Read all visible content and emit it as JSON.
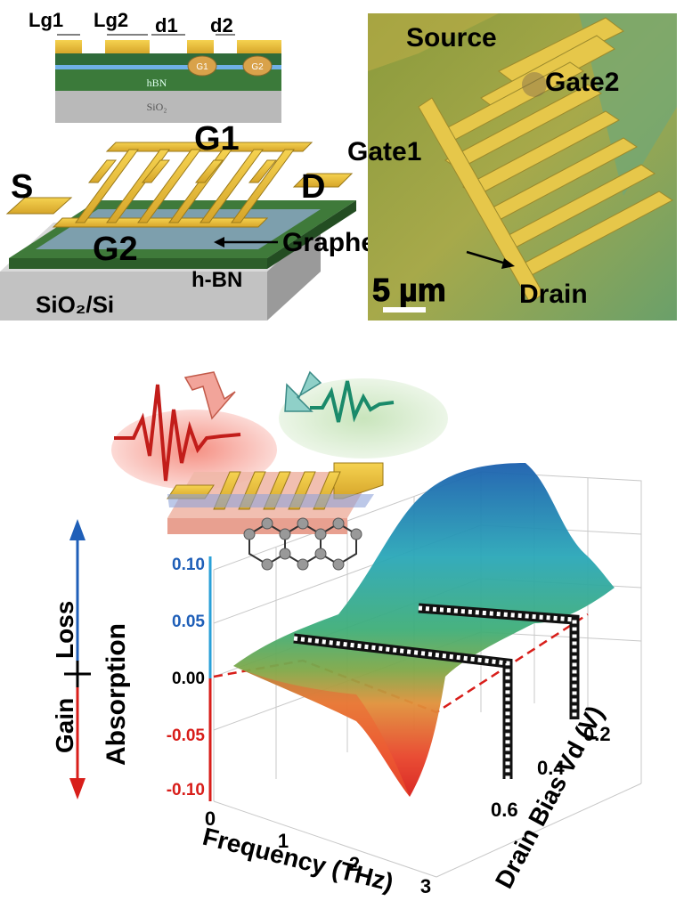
{
  "cross_section": {
    "lg1": "Lg1",
    "lg2": "Lg2",
    "d1": "d1",
    "d2": "d2",
    "g1": "G1",
    "g2": "G2",
    "hbn": "hBN",
    "sio2": "SiO₂"
  },
  "device_3d": {
    "s": "S",
    "d": "D",
    "g1": "G1",
    "g2": "G2",
    "graphene": "Graphene",
    "hbn": "h-BN",
    "substrate": "SiO₂/Si"
  },
  "micrograph": {
    "source": "Source",
    "gate2": "Gate2",
    "gate1": "Gate1",
    "drain": "Drain",
    "scale": "5 µm"
  },
  "chart_data": {
    "type": "surface",
    "title": "",
    "xlabel": "Frequency (THz)",
    "ylabel": "Absorption",
    "zlabel": "Drain Bias Vd (V)",
    "x_ticks": [
      "0",
      "1",
      "2",
      "3"
    ],
    "y_ticks": [
      "0.10",
      "0.05",
      "0.00",
      "-0.05",
      "-0.10"
    ],
    "z_ticks": [
      "0.2",
      "0.4",
      "0.6"
    ],
    "xlim": [
      0,
      3
    ],
    "ylim": [
      -0.1,
      0.1
    ],
    "zlim": [
      0.1,
      0.7
    ],
    "gain_label": "Gain",
    "loss_label": "Loss",
    "colors": {
      "loss": "#1f5fb8",
      "gain": "#d8261c"
    }
  }
}
